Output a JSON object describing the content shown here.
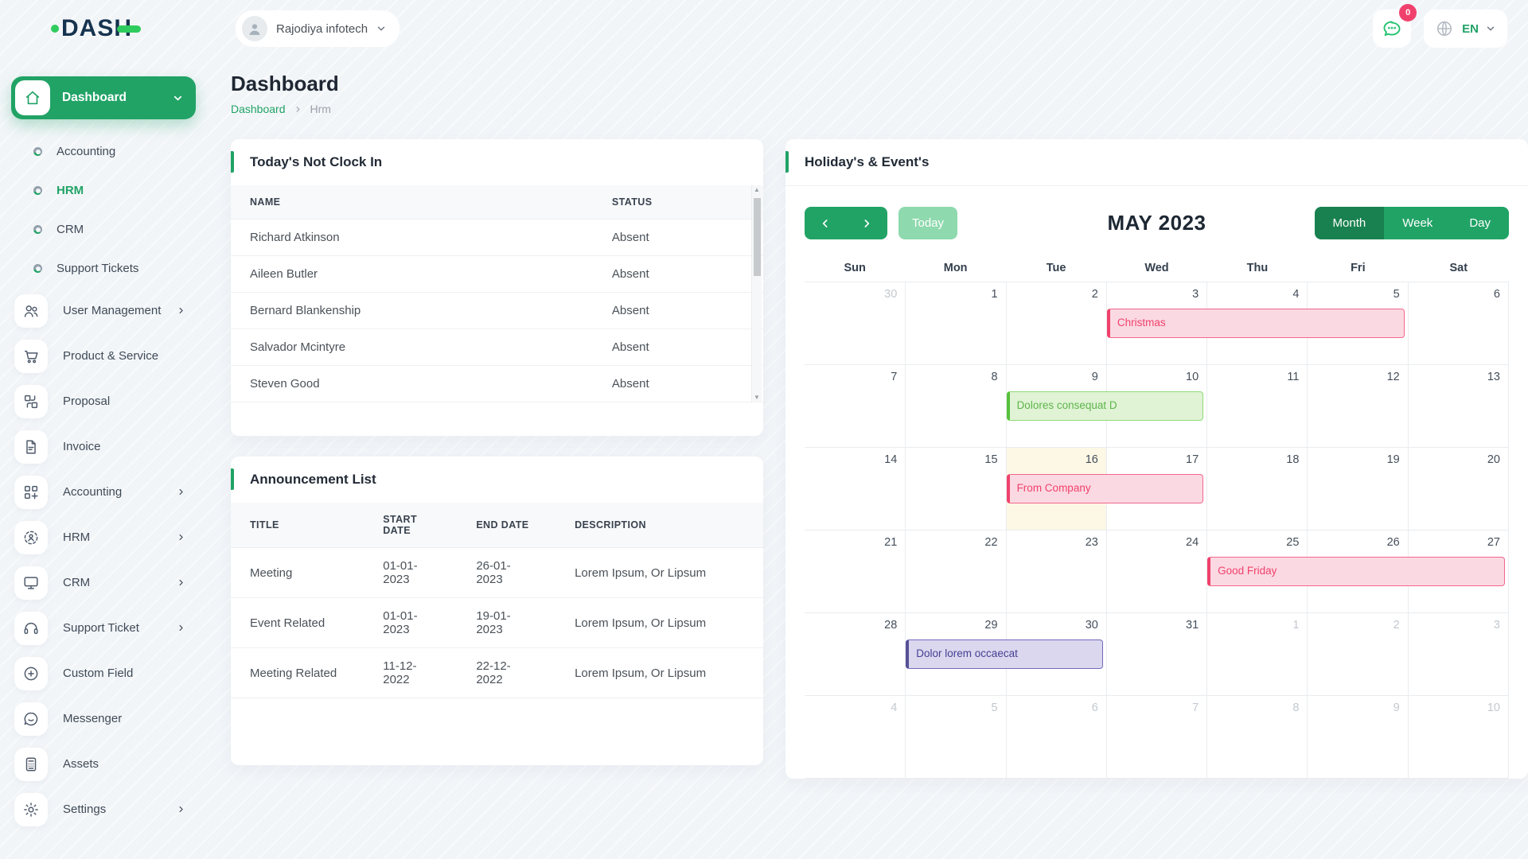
{
  "colors": {
    "primary_green": "#21a366",
    "dark_green": "#19814f",
    "light_green": "#8ed9ad",
    "logo_navy": "#16334f",
    "logo_green": "#2ecc5e",
    "badge_pink": "#f0416c",
    "event_pink": {
      "bg": "#fbd9e2",
      "border": "#f2678c",
      "text": "#f0416c"
    },
    "event_green": {
      "bg": "#e0f3d5",
      "border": "#8fd977",
      "text": "#5eb54b"
    },
    "event_purple": {
      "bg": "#dad7ee",
      "border": "#736bbd",
      "text": "#474093"
    },
    "today_cell_bg": "#fcf8e5"
  },
  "topbar": {
    "logo_text": "DASH",
    "company_name": "Rajodiya infotech",
    "messages_badge": "0",
    "language_label": "EN"
  },
  "sidebar": {
    "dashboard_label": "Dashboard",
    "sub_items": [
      {
        "label": "Accounting"
      },
      {
        "label": "HRM"
      },
      {
        "label": "CRM"
      },
      {
        "label": "Support Tickets"
      }
    ],
    "items": [
      {
        "label": "User Management"
      },
      {
        "label": "Product & Service"
      },
      {
        "label": "Proposal"
      },
      {
        "label": "Invoice"
      },
      {
        "label": "Accounting"
      },
      {
        "label": "HRM"
      },
      {
        "label": "CRM"
      },
      {
        "label": "Support Ticket"
      },
      {
        "label": "Custom Field"
      },
      {
        "label": "Messenger"
      },
      {
        "label": "Assets"
      },
      {
        "label": "Settings"
      }
    ]
  },
  "page": {
    "title": "Dashboard",
    "breadcrumb": [
      "Dashboard",
      "Hrm"
    ]
  },
  "clock_card": {
    "title": "Today's Not Clock In",
    "headers": [
      "NAME",
      "STATUS"
    ],
    "rows": [
      {
        "name": "Richard Atkinson",
        "status": "Absent"
      },
      {
        "name": "Aileen Butler",
        "status": "Absent"
      },
      {
        "name": "Bernard Blankenship",
        "status": "Absent"
      },
      {
        "name": "Salvador Mcintyre",
        "status": "Absent"
      },
      {
        "name": "Steven Good",
        "status": "Absent"
      }
    ]
  },
  "announcement_card": {
    "title": "Announcement List",
    "headers": [
      "TITLE",
      "START DATE",
      "END DATE",
      "DESCRIPTION"
    ],
    "rows": [
      {
        "title": "Meeting",
        "start": "01-01-2023",
        "end": "26-01-2023",
        "description": "Lorem Ipsum, Or Lipsum"
      },
      {
        "title": "Event Related",
        "start": "01-01-2023",
        "end": "19-01-2023",
        "description": "Lorem Ipsum, Or Lipsum"
      },
      {
        "title": "Meeting Related",
        "start": "11-12-2022",
        "end": "22-12-2022",
        "description": "Lorem Ipsum, Or Lipsum"
      }
    ]
  },
  "calendar": {
    "card_title": "Holiday's & Event's",
    "toolbar": {
      "today_label": "Today",
      "month_title": "MAY 2023",
      "views": [
        "Month",
        "Week",
        "Day"
      ],
      "active_view": "Month"
    },
    "day_headers": [
      "Sun",
      "Mon",
      "Tue",
      "Wed",
      "Thu",
      "Fri",
      "Sat"
    ],
    "weeks": [
      {
        "days": [
          {
            "n": "30",
            "muted": true
          },
          {
            "n": "1"
          },
          {
            "n": "2"
          },
          {
            "n": "3"
          },
          {
            "n": "4"
          },
          {
            "n": "5"
          },
          {
            "n": "6"
          }
        ],
        "events": [
          {
            "title": "Christmas",
            "color": "pink",
            "start": 3,
            "span": 3
          }
        ]
      },
      {
        "days": [
          {
            "n": "7"
          },
          {
            "n": "8"
          },
          {
            "n": "9"
          },
          {
            "n": "10"
          },
          {
            "n": "11"
          },
          {
            "n": "12"
          },
          {
            "n": "13"
          }
        ],
        "events": [
          {
            "title": "Dolores consequat D",
            "color": "green",
            "start": 2,
            "span": 2
          }
        ]
      },
      {
        "days": [
          {
            "n": "14"
          },
          {
            "n": "15"
          },
          {
            "n": "16",
            "today": true
          },
          {
            "n": "17"
          },
          {
            "n": "18"
          },
          {
            "n": "19"
          },
          {
            "n": "20"
          }
        ],
        "events": [
          {
            "title": "From Company",
            "color": "pink",
            "start": 2,
            "span": 2
          }
        ]
      },
      {
        "days": [
          {
            "n": "21"
          },
          {
            "n": "22"
          },
          {
            "n": "23"
          },
          {
            "n": "24"
          },
          {
            "n": "25"
          },
          {
            "n": "26"
          },
          {
            "n": "27"
          }
        ],
        "events": [
          {
            "title": "Good Friday",
            "color": "pink",
            "start": 4,
            "span": 3
          }
        ]
      },
      {
        "days": [
          {
            "n": "28"
          },
          {
            "n": "29"
          },
          {
            "n": "30"
          },
          {
            "n": "31"
          },
          {
            "n": "1",
            "muted": true
          },
          {
            "n": "2",
            "muted": true
          },
          {
            "n": "3",
            "muted": true
          }
        ],
        "events": [
          {
            "title": "Dolor lorem occaecat",
            "color": "purple",
            "start": 1,
            "span": 2
          }
        ]
      },
      {
        "days": [
          {
            "n": "4",
            "muted": true
          },
          {
            "n": "5",
            "muted": true
          },
          {
            "n": "6",
            "muted": true
          },
          {
            "n": "7",
            "muted": true
          },
          {
            "n": "8",
            "muted": true
          },
          {
            "n": "9",
            "muted": true
          },
          {
            "n": "10",
            "muted": true
          }
        ],
        "events": []
      }
    ]
  }
}
